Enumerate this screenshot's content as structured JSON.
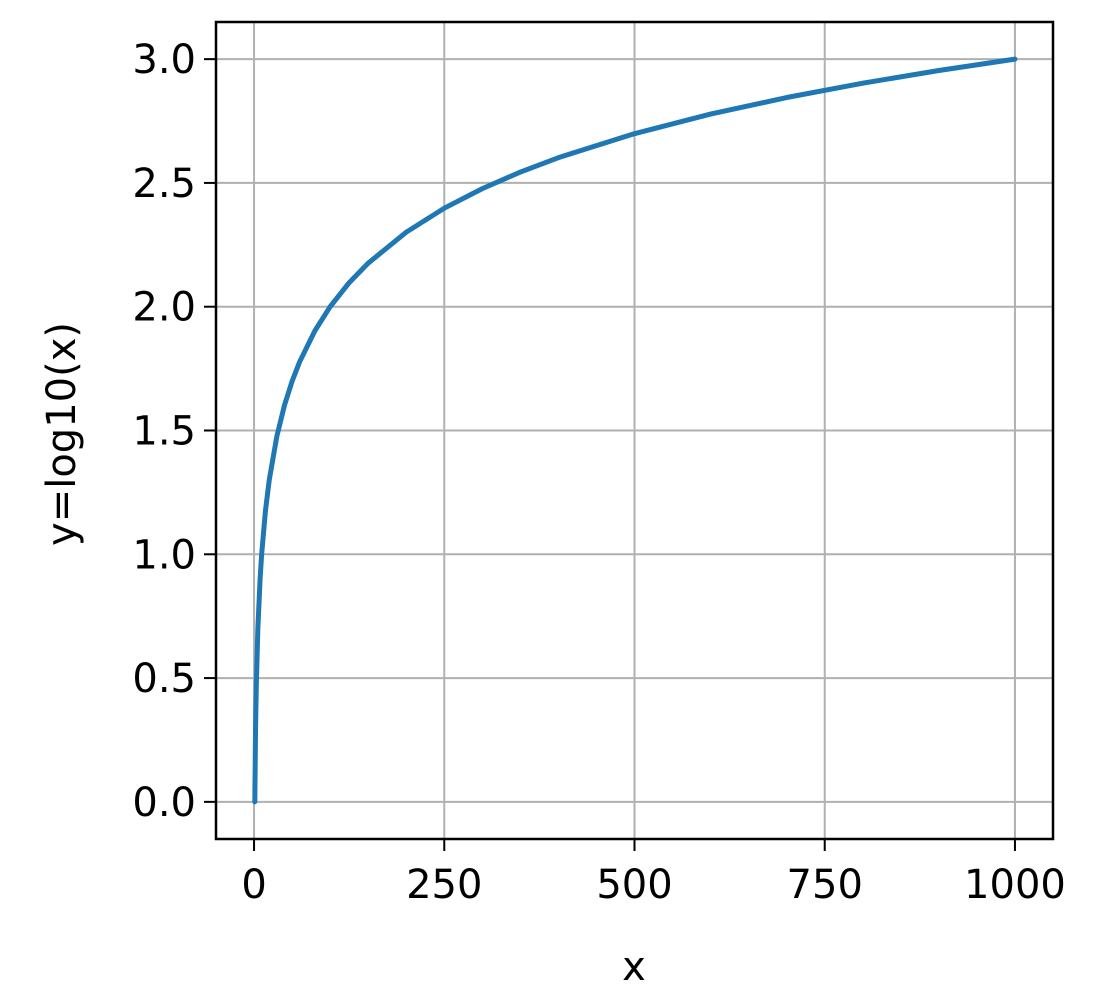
{
  "chart_data": {
    "type": "line",
    "title": "",
    "xlabel": "x",
    "ylabel": "y=log10(x)",
    "xlim": [
      -50,
      1050
    ],
    "ylim": [
      -0.15,
      3.15
    ],
    "xticks": [
      0,
      250,
      500,
      750,
      1000
    ],
    "xtick_labels": [
      "0",
      "250",
      "500",
      "750",
      "1000"
    ],
    "yticks": [
      0.0,
      0.5,
      1.0,
      1.5,
      2.0,
      2.5,
      3.0
    ],
    "ytick_labels": [
      "0.0",
      "0.5",
      "1.0",
      "1.5",
      "2.0",
      "2.5",
      "3.0"
    ],
    "grid": true,
    "series": [
      {
        "color": "#1f77b4",
        "x": [
          1,
          2,
          3,
          5,
          8,
          10,
          15,
          20,
          30,
          40,
          50,
          60,
          80,
          100,
          125,
          150,
          200,
          250,
          300,
          350,
          400,
          500,
          600,
          700,
          800,
          900,
          1000
        ],
        "y": [
          0.0,
          0.301,
          0.477,
          0.699,
          0.903,
          1.0,
          1.176,
          1.301,
          1.477,
          1.602,
          1.699,
          1.778,
          1.903,
          2.0,
          2.097,
          2.176,
          2.301,
          2.398,
          2.477,
          2.544,
          2.602,
          2.699,
          2.778,
          2.845,
          2.903,
          2.954,
          3.0
        ]
      }
    ]
  }
}
